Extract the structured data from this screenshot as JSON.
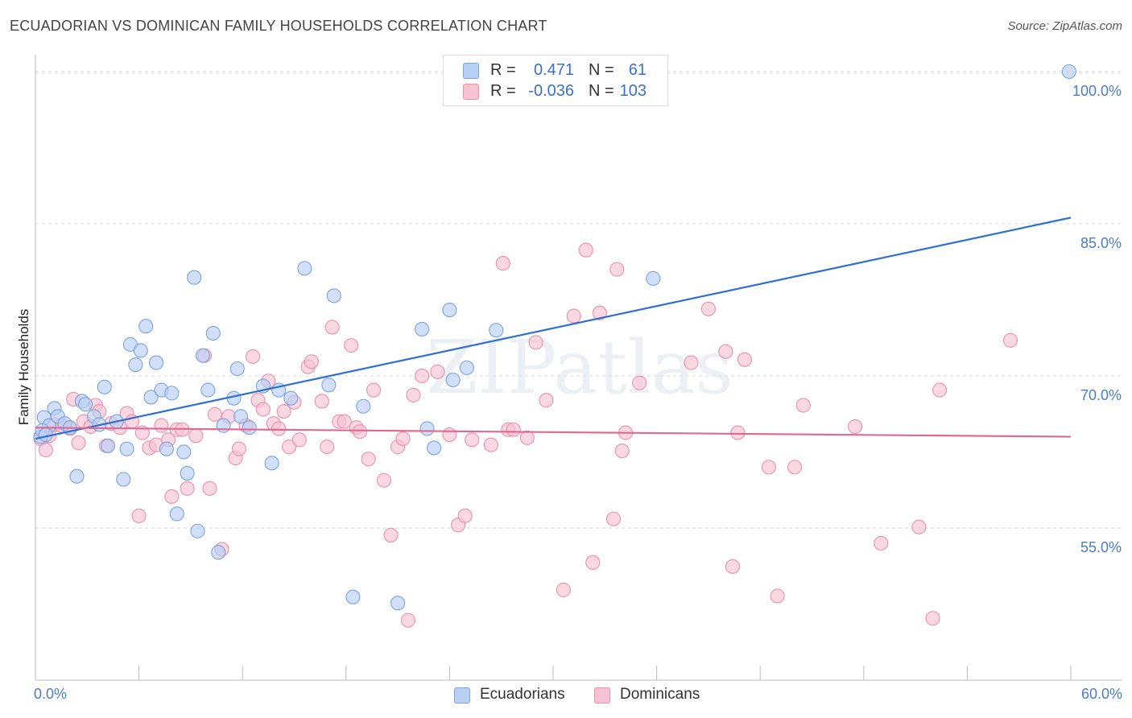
{
  "title": "ECUADORIAN VS DOMINICAN FAMILY HOUSEHOLDS CORRELATION CHART",
  "source": "Source: ZipAtlas.com",
  "watermark": "ZIPatlas",
  "legend_top": [
    {
      "r_label": "R =",
      "r_value": "0.471",
      "n_label": "N =",
      "n_value": "61"
    },
    {
      "r_label": "R =",
      "r_value": "-0.036",
      "n_label": "N =",
      "n_value": "103"
    }
  ],
  "legend_bottom": [
    "Ecuadorians",
    "Dominicans"
  ],
  "colors": {
    "ecuadorians_fill": "#b8d0f4",
    "ecuadorians_stroke": "#7aa3e0",
    "ecuadorians_line": "#2e6fd0",
    "dominicans_fill": "#f7c3d3",
    "dominicans_stroke": "#ea8fad",
    "dominicans_line": "#e06892",
    "tick_text": "#4a7cc9",
    "grid": "#d9d9d9"
  },
  "chart_data": {
    "type": "scatter",
    "title": "ECUADORIAN VS DOMINICAN FAMILY HOUSEHOLDS CORRELATION CHART",
    "xlabel": "",
    "ylabel": "Family Households",
    "xlim": [
      0.0,
      60.0
    ],
    "ylim": [
      40.0,
      101.5
    ],
    "x_tick_labels": [
      "0.0%",
      "60.0%"
    ],
    "y_ticks": [
      55.0,
      70.0,
      85.0,
      100.0
    ],
    "y_tick_labels": [
      "55.0%",
      "70.0%",
      "85.0%",
      "100.0%"
    ],
    "grid": true,
    "series": [
      {
        "name": "Ecuadorians",
        "r": 0.471,
        "n": 61,
        "trend": {
          "x": [
            0.0,
            60.0
          ],
          "y": [
            63.8,
            85.6
          ]
        },
        "points": [
          [
            0.5,
            65.9
          ],
          [
            0.8,
            65.1
          ],
          [
            1.1,
            66.8
          ],
          [
            1.3,
            66.0
          ],
          [
            1.7,
            65.3
          ],
          [
            2.0,
            64.9
          ],
          [
            2.4,
            60.1
          ],
          [
            2.7,
            67.5
          ],
          [
            2.9,
            67.2
          ],
          [
            3.4,
            66.0
          ],
          [
            3.7,
            65.2
          ],
          [
            4.0,
            68.9
          ],
          [
            4.2,
            63.1
          ],
          [
            4.7,
            65.5
          ],
          [
            5.1,
            59.8
          ],
          [
            5.3,
            62.8
          ],
          [
            5.5,
            73.1
          ],
          [
            5.8,
            71.1
          ],
          [
            6.1,
            72.5
          ],
          [
            6.4,
            74.9
          ],
          [
            6.7,
            67.9
          ],
          [
            7.0,
            71.3
          ],
          [
            7.3,
            68.6
          ],
          [
            7.6,
            62.8
          ],
          [
            7.9,
            68.3
          ],
          [
            8.2,
            56.4
          ],
          [
            8.6,
            62.5
          ],
          [
            8.8,
            60.4
          ],
          [
            9.2,
            79.7
          ],
          [
            9.4,
            54.7
          ],
          [
            9.7,
            72.0
          ],
          [
            10.0,
            68.6
          ],
          [
            10.3,
            74.2
          ],
          [
            10.6,
            52.6
          ],
          [
            10.9,
            65.1
          ],
          [
            11.5,
            67.8
          ],
          [
            11.7,
            70.7
          ],
          [
            11.9,
            66.0
          ],
          [
            12.4,
            64.9
          ],
          [
            13.2,
            69.0
          ],
          [
            13.7,
            61.4
          ],
          [
            14.1,
            68.6
          ],
          [
            14.8,
            67.8
          ],
          [
            15.6,
            80.6
          ],
          [
            17.0,
            69.1
          ],
          [
            17.3,
            77.9
          ],
          [
            18.4,
            48.2
          ],
          [
            19.0,
            67.0
          ],
          [
            21.0,
            47.6
          ],
          [
            22.4,
            74.6
          ],
          [
            22.7,
            64.8
          ],
          [
            23.1,
            62.9
          ],
          [
            24.0,
            76.5
          ],
          [
            24.2,
            69.6
          ],
          [
            25.0,
            70.8
          ],
          [
            26.7,
            74.5
          ],
          [
            35.8,
            79.6
          ],
          [
            59.9,
            100.0
          ],
          [
            0.3,
            64.0
          ],
          [
            0.4,
            64.6
          ],
          [
            0.6,
            64.2
          ]
        ]
      },
      {
        "name": "Dominicans",
        "r": -0.036,
        "n": 103,
        "trend": {
          "x": [
            0.0,
            60.0
          ],
          "y": [
            64.9,
            64.0
          ]
        },
        "points": [
          [
            0.3,
            63.8
          ],
          [
            0.6,
            62.7
          ],
          [
            0.8,
            64.1
          ],
          [
            1.1,
            65.2
          ],
          [
            1.5,
            65.1
          ],
          [
            2.0,
            64.8
          ],
          [
            2.2,
            67.7
          ],
          [
            2.5,
            63.4
          ],
          [
            2.8,
            65.5
          ],
          [
            3.2,
            65.0
          ],
          [
            3.5,
            67.1
          ],
          [
            3.7,
            66.5
          ],
          [
            4.1,
            63.1
          ],
          [
            4.4,
            65.3
          ],
          [
            4.9,
            64.9
          ],
          [
            5.3,
            66.3
          ],
          [
            5.6,
            65.5
          ],
          [
            6.0,
            56.2
          ],
          [
            6.2,
            64.4
          ],
          [
            6.6,
            62.9
          ],
          [
            7.0,
            63.2
          ],
          [
            7.3,
            65.1
          ],
          [
            7.7,
            63.7
          ],
          [
            7.9,
            58.1
          ],
          [
            8.2,
            64.7
          ],
          [
            8.5,
            64.7
          ],
          [
            8.8,
            58.9
          ],
          [
            9.3,
            64.1
          ],
          [
            9.8,
            72.0
          ],
          [
            10.1,
            58.9
          ],
          [
            10.4,
            66.2
          ],
          [
            10.8,
            52.9
          ],
          [
            11.2,
            66.0
          ],
          [
            11.6,
            61.9
          ],
          [
            11.8,
            62.8
          ],
          [
            12.2,
            65.1
          ],
          [
            12.6,
            71.9
          ],
          [
            12.9,
            67.6
          ],
          [
            13.2,
            66.7
          ],
          [
            13.5,
            69.5
          ],
          [
            13.8,
            65.3
          ],
          [
            14.1,
            64.8
          ],
          [
            14.4,
            66.5
          ],
          [
            14.7,
            63.0
          ],
          [
            15.0,
            67.4
          ],
          [
            15.3,
            63.7
          ],
          [
            15.8,
            70.9
          ],
          [
            16.0,
            71.4
          ],
          [
            16.6,
            67.5
          ],
          [
            16.9,
            63.0
          ],
          [
            17.2,
            74.8
          ],
          [
            17.6,
            65.5
          ],
          [
            17.9,
            65.5
          ],
          [
            18.3,
            73.0
          ],
          [
            18.6,
            64.9
          ],
          [
            18.8,
            64.5
          ],
          [
            19.3,
            61.8
          ],
          [
            19.6,
            68.6
          ],
          [
            20.2,
            59.7
          ],
          [
            20.6,
            54.3
          ],
          [
            21.0,
            63.0
          ],
          [
            21.3,
            63.8
          ],
          [
            21.6,
            45.9
          ],
          [
            21.9,
            68.1
          ],
          [
            22.4,
            70.0
          ],
          [
            23.3,
            70.4
          ],
          [
            24.0,
            64.2
          ],
          [
            24.5,
            55.3
          ],
          [
            24.9,
            56.2
          ],
          [
            25.3,
            63.7
          ],
          [
            26.4,
            63.2
          ],
          [
            27.1,
            81.1
          ],
          [
            27.4,
            64.7
          ],
          [
            27.7,
            64.7
          ],
          [
            28.5,
            63.9
          ],
          [
            29.0,
            73.3
          ],
          [
            29.6,
            67.6
          ],
          [
            30.6,
            48.9
          ],
          [
            31.2,
            75.9
          ],
          [
            31.9,
            82.4
          ],
          [
            32.3,
            51.6
          ],
          [
            32.7,
            76.2
          ],
          [
            33.5,
            55.9
          ],
          [
            33.7,
            80.5
          ],
          [
            34.0,
            62.6
          ],
          [
            34.2,
            64.4
          ],
          [
            35.0,
            69.3
          ],
          [
            38.0,
            71.3
          ],
          [
            39.0,
            76.6
          ],
          [
            40.0,
            72.4
          ],
          [
            40.4,
            51.2
          ],
          [
            40.7,
            64.4
          ],
          [
            41.1,
            71.6
          ],
          [
            42.5,
            61.0
          ],
          [
            43.0,
            48.3
          ],
          [
            44.0,
            61.0
          ],
          [
            44.5,
            67.1
          ],
          [
            47.5,
            65.0
          ],
          [
            49.0,
            53.5
          ],
          [
            51.2,
            55.1
          ],
          [
            52.0,
            46.1
          ],
          [
            52.4,
            68.6
          ],
          [
            56.5,
            73.5
          ]
        ]
      }
    ]
  }
}
